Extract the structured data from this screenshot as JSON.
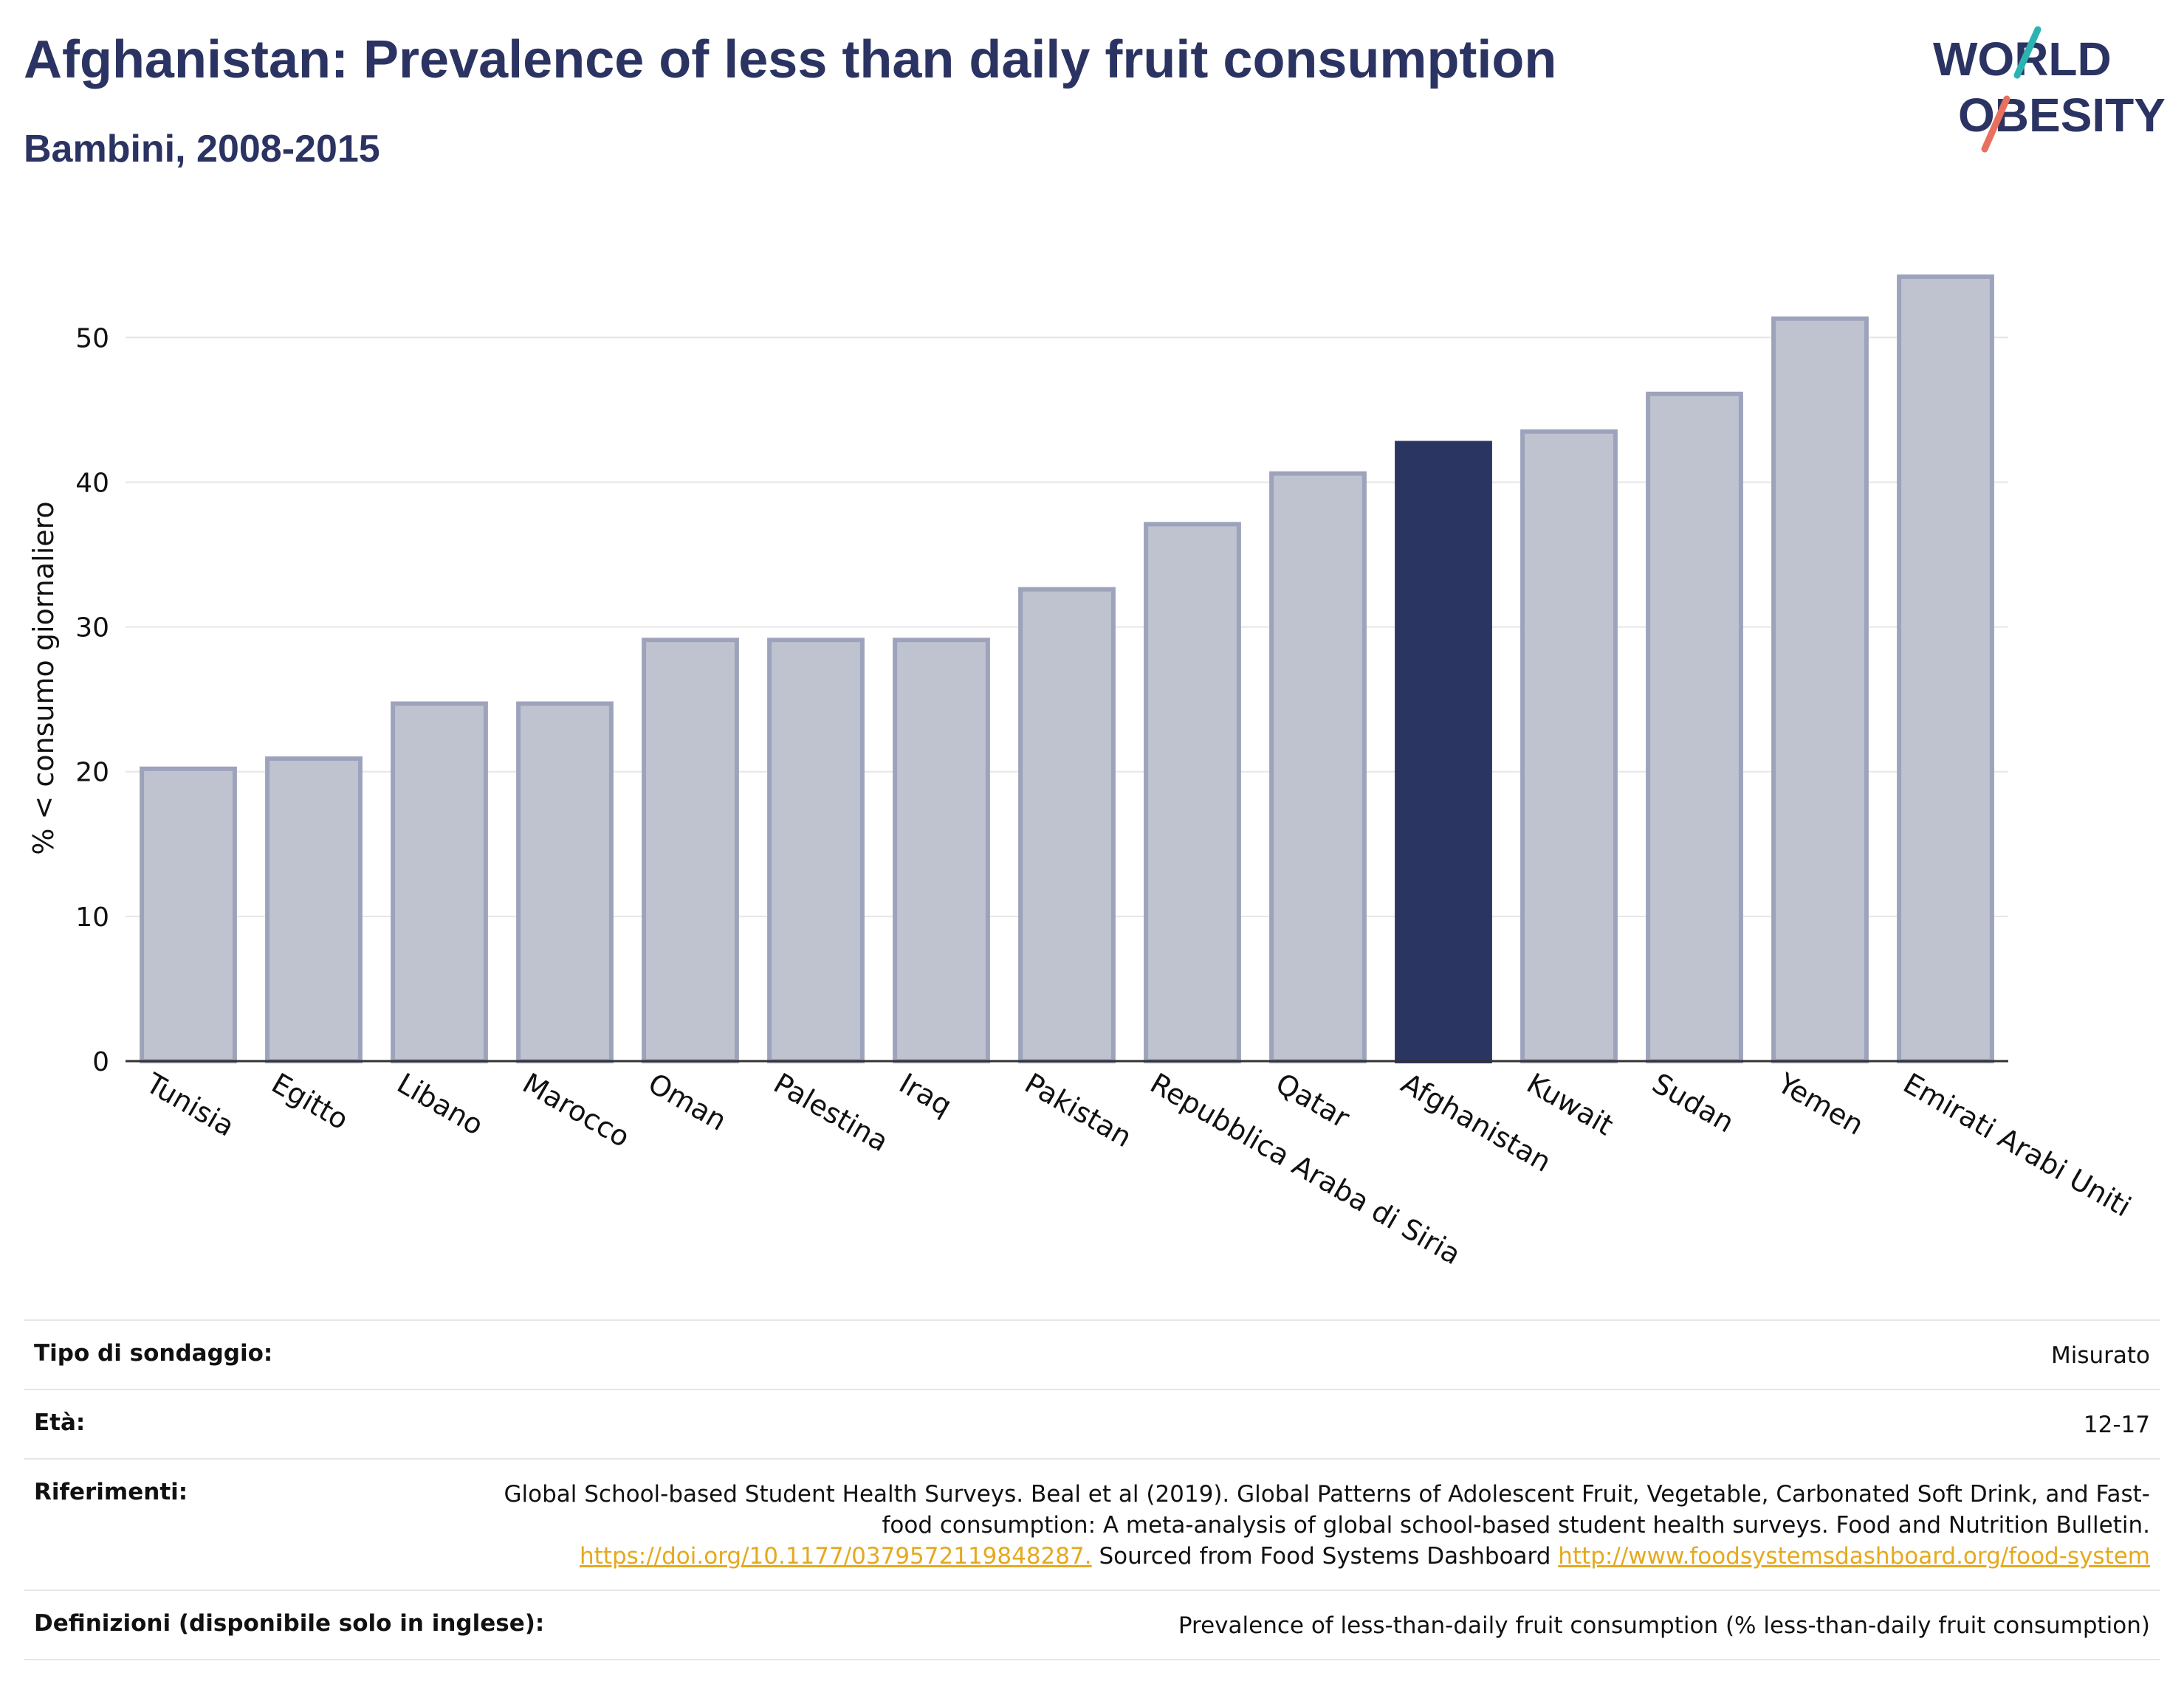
{
  "header": {
    "title": "Afghanistan: Prevalence of less than daily fruit consumption",
    "subtitle": "Bambini, 2008-2015"
  },
  "logo": {
    "line1": "WORLD",
    "line2": "OBESITY",
    "accent_teal": "#2bb3b1",
    "accent_coral": "#e8705f",
    "text_color": "#2b3362"
  },
  "colors": {
    "bar_default": "#bfc3d0",
    "bar_default_stroke": "#9da3bb",
    "bar_highlight": "#2b3562",
    "gridline": "#e6e6e6",
    "axis_text": "#111111"
  },
  "chart_data": {
    "type": "bar",
    "ylabel": "% < consumo giornaliero",
    "xlabel": "",
    "ylim": [
      0,
      57
    ],
    "yticks": [
      0,
      10,
      20,
      30,
      40,
      50
    ],
    "grid": true,
    "highlight": "Afghanistan",
    "categories": [
      "Tunisia",
      "Egitto",
      "Libano",
      "Marocco",
      "Oman",
      "Palestina",
      "Iraq",
      "Pakistan",
      "Repubblica Araba di Siria",
      "Qatar",
      "Afghanistan",
      "Kuwait",
      "Sudan",
      "Yemen",
      "Emirati Arabi Uniti"
    ],
    "values": [
      20.2,
      20.9,
      24.7,
      24.7,
      29.1,
      29.1,
      29.1,
      32.6,
      37.1,
      40.6,
      42.7,
      43.5,
      46.1,
      51.3,
      54.2
    ]
  },
  "meta": {
    "survey_label": "Tipo di sondaggio:",
    "survey_value": "Misurato",
    "age_label": "Età:",
    "age_value": "12-17",
    "refs_label": "Riferimenti:",
    "refs_text1": "Global School-based Student Health Surveys. Beal et al (2019). Global Patterns of Adolescent Fruit, Vegetable, Carbonated Soft Drink, and Fast-food consumption: A meta-analysis of global school-based student health surveys. Food and Nutrition Bulletin.",
    "refs_link1": "https://doi.org/10.1177/0379572119848287.",
    "refs_text2": "Sourced from Food Systems Dashboard",
    "refs_link2": "http://www.foodsystemsdashboard.org/food-system",
    "defs_label": "Definizioni (disponibile solo in inglese):",
    "defs_value": "Prevalence of less-than-daily fruit consumption (% less-than-daily fruit consumption)"
  }
}
